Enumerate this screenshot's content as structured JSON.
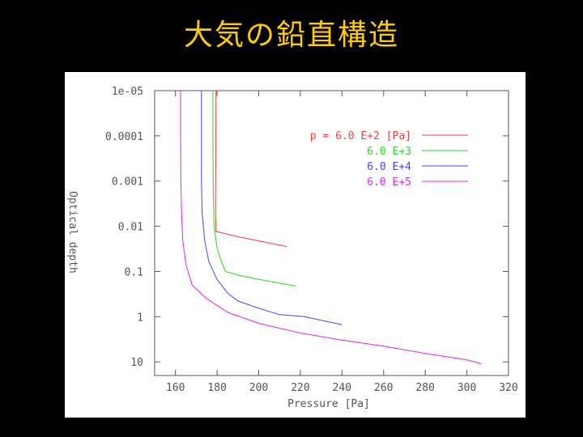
{
  "slide": {
    "title": "大気の鉛直構造"
  },
  "chart_data": {
    "type": "line",
    "title": "",
    "xlabel": "Pressure [Pa]",
    "ylabel": "Optical depth",
    "xlim": [
      150,
      320
    ],
    "x_ticks": [
      160,
      180,
      200,
      220,
      240,
      260,
      280,
      300,
      320
    ],
    "y_scale": "log",
    "y_inverted": true,
    "ylim": [
      1e-05,
      20
    ],
    "y_ticks": [
      {
        "value": 1e-05,
        "label": "1e-05"
      },
      {
        "value": 0.0001,
        "label": "0.0001"
      },
      {
        "value": 0.001,
        "label": "0.001"
      },
      {
        "value": 0.01,
        "label": "0.01"
      },
      {
        "value": 0.1,
        "label": "0.1"
      },
      {
        "value": 1,
        "label": "1"
      },
      {
        "value": 10,
        "label": "10"
      }
    ],
    "grid": false,
    "legend_position": "top-right",
    "series": [
      {
        "name": "p = 6.0 E+2 [Pa]",
        "color": "#ff3b3b",
        "points": [
          [
            179.5,
            1e-05
          ],
          [
            179.4,
            0.0001
          ],
          [
            179.3,
            0.001
          ],
          [
            179.2,
            0.005
          ],
          [
            179.5,
            0.013
          ],
          [
            190,
            0.017
          ],
          [
            200,
            0.021
          ],
          [
            213.5,
            0.028
          ]
        ]
      },
      {
        "name": "6.0 E+3",
        "color": "#22dd22",
        "points": [
          [
            178,
            1e-05
          ],
          [
            178,
            0.0001
          ],
          [
            178.1,
            0.001
          ],
          [
            178.5,
            0.01
          ],
          [
            180,
            0.03
          ],
          [
            182,
            0.06
          ],
          [
            184,
            0.1
          ],
          [
            190,
            0.12
          ],
          [
            200,
            0.15
          ],
          [
            210,
            0.18
          ],
          [
            218,
            0.21
          ]
        ]
      },
      {
        "name": "6.0 E+4",
        "color": "#4444ff",
        "points": [
          [
            172.5,
            1e-05
          ],
          [
            172.5,
            0.0001
          ],
          [
            172.5,
            0.001
          ],
          [
            172.8,
            0.005
          ],
          [
            174,
            0.02
          ],
          [
            176,
            0.06
          ],
          [
            180,
            0.15
          ],
          [
            185,
            0.3
          ],
          [
            190,
            0.45
          ],
          [
            200,
            0.65
          ],
          [
            210,
            0.9
          ],
          [
            222,
            1.0
          ],
          [
            240,
            1.5
          ]
        ]
      },
      {
        "name": "6.0 E+5",
        "color": "#ee22ee",
        "points": [
          [
            162.5,
            1e-05
          ],
          [
            162.5,
            0.0001
          ],
          [
            162.6,
            0.001
          ],
          [
            162.9,
            0.005
          ],
          [
            163.5,
            0.02
          ],
          [
            165,
            0.07
          ],
          [
            168,
            0.2
          ],
          [
            175,
            0.4
          ],
          [
            185,
            0.8
          ],
          [
            200,
            1.4
          ],
          [
            220,
            2.3
          ],
          [
            240,
            3.3
          ],
          [
            260,
            4.5
          ],
          [
            280,
            6.5
          ],
          [
            300,
            9.0
          ],
          [
            307,
            11
          ]
        ]
      }
    ]
  }
}
